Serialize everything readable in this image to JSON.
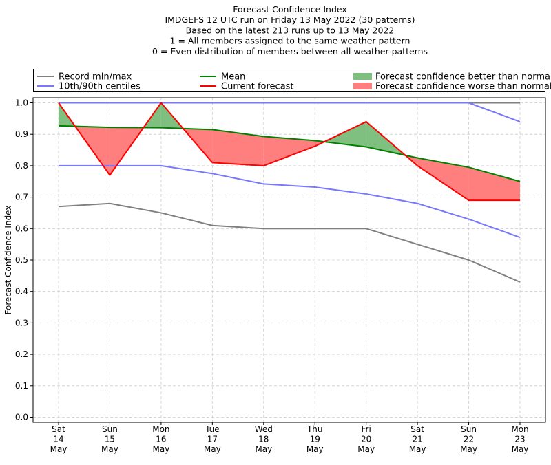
{
  "chart_data": {
    "type": "line",
    "title_lines": [
      "Forecast Confidence Index",
      "IMDGEFS 12 UTC run on Friday 13 May 2022 (30 patterns)",
      "Based on the latest 213 runs up to 13 May 2022",
      "1 = All members assigned to the same weather pattern",
      "0 = Even distribution of members between all weather patterns"
    ],
    "ylabel": "Forecast Confidence Index",
    "ylim": [
      0,
      1
    ],
    "yticks": [
      "0.0",
      "0.1",
      "0.2",
      "0.3",
      "0.4",
      "0.5",
      "0.6",
      "0.7",
      "0.8",
      "0.9",
      "1.0"
    ],
    "grid": true,
    "legend_position": "top",
    "categories": [
      [
        "Sat",
        "14",
        "May"
      ],
      [
        "Sun",
        "15",
        "May"
      ],
      [
        "Mon",
        "16",
        "May"
      ],
      [
        "Tue",
        "17",
        "May"
      ],
      [
        "Wed",
        "18",
        "May"
      ],
      [
        "Thu",
        "19",
        "May"
      ],
      [
        "Fri",
        "20",
        "May"
      ],
      [
        "Sat",
        "21",
        "May"
      ],
      [
        "Sun",
        "22",
        "May"
      ],
      [
        "Mon",
        "23",
        "May"
      ]
    ],
    "series": {
      "record_min": [
        0.67,
        0.68,
        0.65,
        0.61,
        0.6,
        0.6,
        0.6,
        0.55,
        0.5,
        0.43
      ],
      "record_max": [
        1.0,
        1.0,
        1.0,
        1.0,
        1.0,
        1.0,
        1.0,
        1.0,
        1.0,
        1.0
      ],
      "p10": [
        0.8,
        0.8,
        0.8,
        0.775,
        0.742,
        0.732,
        0.71,
        0.68,
        0.63,
        0.572
      ],
      "p90": [
        1.0,
        1.0,
        1.0,
        1.0,
        1.0,
        1.0,
        1.0,
        1.0,
        1.0,
        0.94
      ],
      "mean": [
        0.927,
        0.922,
        0.921,
        0.915,
        0.893,
        0.88,
        0.86,
        0.825,
        0.795,
        0.75
      ],
      "current": [
        1.0,
        0.77,
        1.0,
        0.81,
        0.8,
        0.862,
        0.94,
        0.8,
        0.69,
        0.69
      ]
    },
    "legend": [
      {
        "label": "Record min/max",
        "kind": "line",
        "color": "#7f7f7f"
      },
      {
        "label": "10th/90th centiles",
        "kind": "line",
        "color": "#7777ff"
      },
      {
        "label": "Mean",
        "kind": "line",
        "color": "#008000"
      },
      {
        "label": "Current forecast",
        "kind": "line",
        "color": "#ff0000"
      },
      {
        "label": "Forecast confidence better than normal",
        "kind": "patch",
        "color": "#7fbf7f"
      },
      {
        "label": "Forecast confidence worse than normal",
        "kind": "patch",
        "color": "#ff7f7f"
      }
    ],
    "colors": {
      "record": "#7f7f7f",
      "centile": "#7777ff",
      "mean": "#008000",
      "current": "#ff0000",
      "better": "#7fbf7f",
      "worse": "#ff7f7f",
      "grid": "#cccccc"
    }
  }
}
